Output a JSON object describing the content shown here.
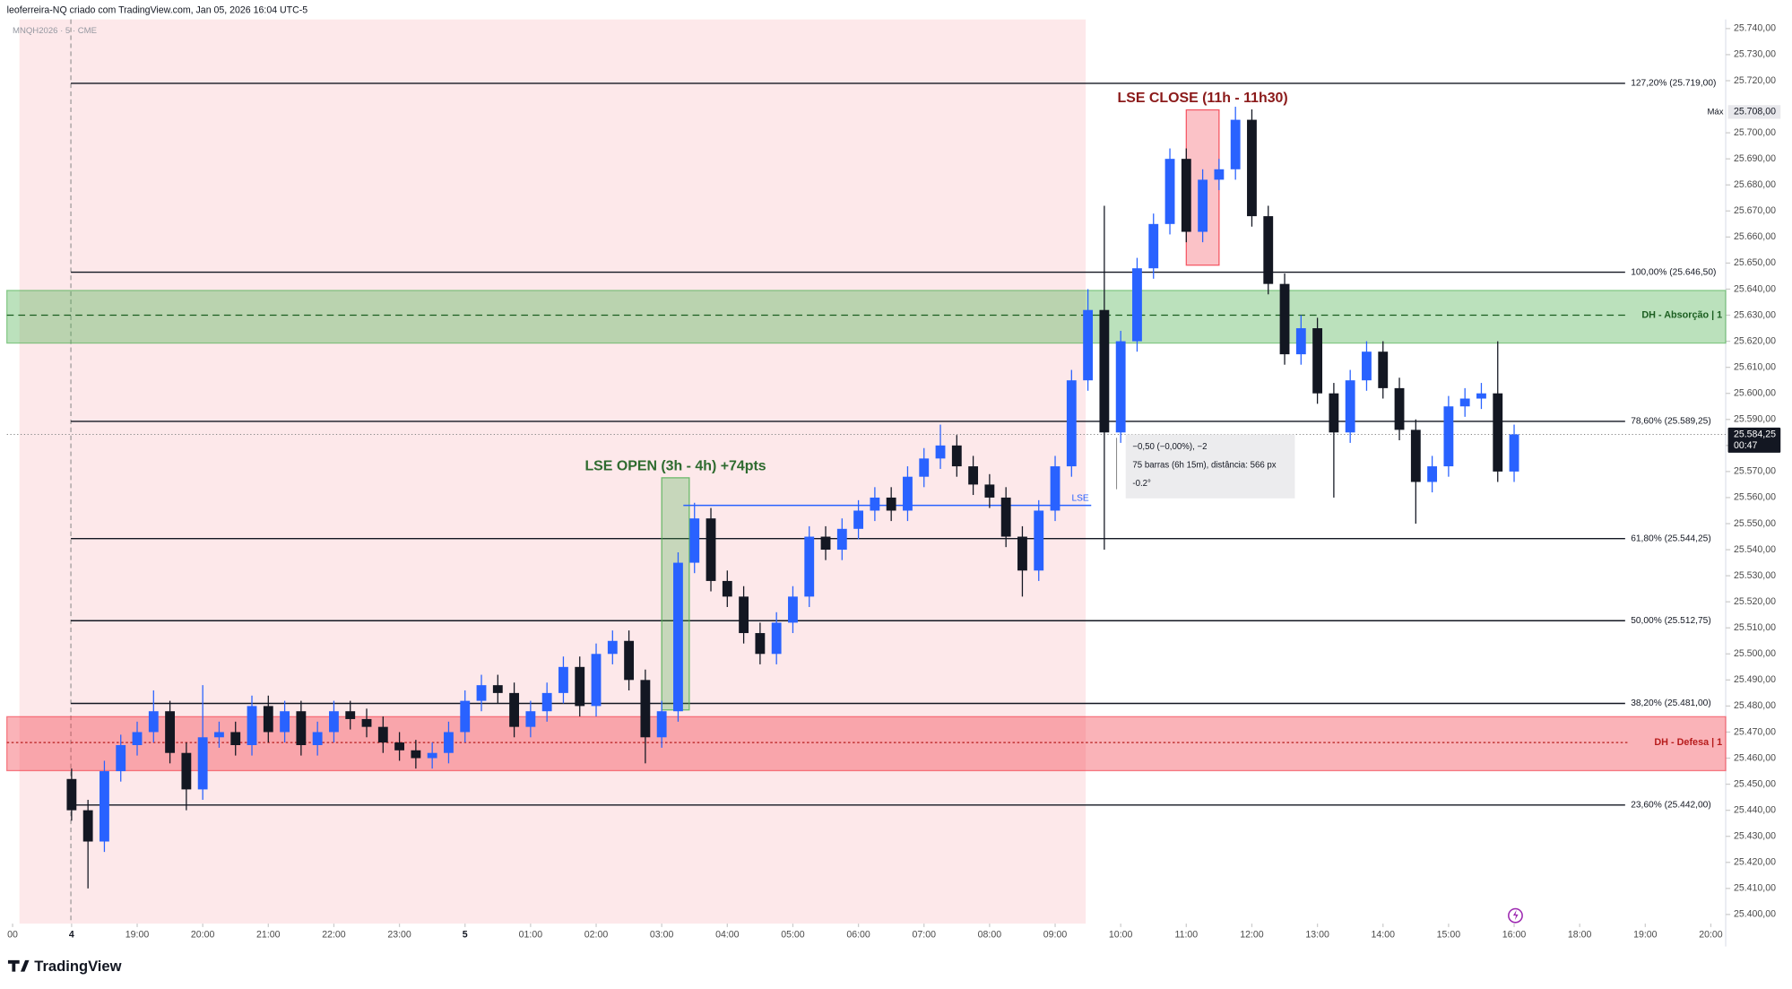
{
  "chart_data": {
    "type": "candlestick",
    "caption": "leoferreira-NQ criado com TradingView.com, Jan 05, 2026 16:04 UTC-5",
    "symbol": "MNQH2026 · 5 · CME",
    "brand": "TradingView",
    "up_color": "#2962ff",
    "down_color": "#131722",
    "ylim": [
      25400,
      25740
    ],
    "yticks": [
      {
        "value": 25400,
        "label": "25.400,00"
      },
      {
        "value": 25410,
        "label": "25.410,00"
      },
      {
        "value": 25420,
        "label": "25.420,00"
      },
      {
        "value": 25430,
        "label": "25.430,00"
      },
      {
        "value": 25440,
        "label": "25.440,00"
      },
      {
        "value": 25450,
        "label": "25.450,00"
      },
      {
        "value": 25460,
        "label": "25.460,00"
      },
      {
        "value": 25470,
        "label": "25.470,00"
      },
      {
        "value": 25480,
        "label": "25.480,00"
      },
      {
        "value": 25490,
        "label": "25.490,00"
      },
      {
        "value": 25500,
        "label": "25.500,00"
      },
      {
        "value": 25510,
        "label": "25.510,00"
      },
      {
        "value": 25520,
        "label": "25.520,00"
      },
      {
        "value": 25530,
        "label": "25.530,00"
      },
      {
        "value": 25540,
        "label": "25.540,00"
      },
      {
        "value": 25550,
        "label": "25.550,00"
      },
      {
        "value": 25560,
        "label": "25.560,00"
      },
      {
        "value": 25570,
        "label": "25.570,00"
      },
      {
        "value": 25580,
        "label": "25.580,00"
      },
      {
        "value": 25590,
        "label": "25.590,00"
      },
      {
        "value": 25600,
        "label": "25.600,00"
      },
      {
        "value": 25610,
        "label": "25.610,00"
      },
      {
        "value": 25620,
        "label": "25.620,00"
      },
      {
        "value": 25630,
        "label": "25.630,00"
      },
      {
        "value": 25640,
        "label": "25.640,00"
      },
      {
        "value": 25650,
        "label": "25.650,00"
      },
      {
        "value": 25660,
        "label": "25.660,00"
      },
      {
        "value": 25670,
        "label": "25.670,00"
      },
      {
        "value": 25680,
        "label": "25.680,00"
      },
      {
        "value": 25690,
        "label": "25.690,00"
      },
      {
        "value": 25700,
        "label": "25.700,00"
      },
      {
        "value": 25720,
        "label": "25.720,00"
      },
      {
        "value": 25730,
        "label": "25.730,00"
      },
      {
        "value": 25740,
        "label": "25.740,00"
      }
    ],
    "xlim": [
      16.9,
      44.2
    ],
    "xticks": [
      {
        "value": 17.1,
        "label": "00"
      },
      {
        "value": 18,
        "label": "4"
      },
      {
        "value": 19,
        "label": "19:00"
      },
      {
        "value": 20,
        "label": "20:00"
      },
      {
        "value": 21,
        "label": "21:00"
      },
      {
        "value": 22,
        "label": "22:00"
      },
      {
        "value": 23,
        "label": "23:00"
      },
      {
        "value": 24,
        "label": "5"
      },
      {
        "value": 25,
        "label": "01:00"
      },
      {
        "value": 26,
        "label": "02:00"
      },
      {
        "value": 27,
        "label": "03:00"
      },
      {
        "value": 28,
        "label": "04:00"
      },
      {
        "value": 29,
        "label": "05:00"
      },
      {
        "value": 30,
        "label": "06:00"
      },
      {
        "value": 31,
        "label": "07:00"
      },
      {
        "value": 32,
        "label": "08:00"
      },
      {
        "value": 33,
        "label": "09:00"
      },
      {
        "value": 34,
        "label": "10:00"
      },
      {
        "value": 35,
        "label": "11:00"
      },
      {
        "value": 36,
        "label": "12:00"
      },
      {
        "value": 37,
        "label": "13:00"
      },
      {
        "value": 38,
        "label": "14:00"
      },
      {
        "value": 39,
        "label": "15:00"
      },
      {
        "value": 40,
        "label": "16:00"
      },
      {
        "value": 41,
        "label": "18:00"
      },
      {
        "value": 42,
        "label": "19:00"
      },
      {
        "value": 43,
        "label": "20:00"
      }
    ],
    "t": [
      18,
      18.25,
      18.5,
      18.75,
      19,
      19.25,
      19.5,
      19.75,
      20,
      20.25,
      20.5,
      20.75,
      21,
      21.25,
      21.5,
      21.75,
      22,
      22.25,
      22.5,
      22.75,
      23,
      23.25,
      23.5,
      23.75,
      24,
      24.25,
      24.5,
      24.75,
      25,
      25.25,
      25.5,
      25.75,
      26,
      26.25,
      26.5,
      26.75,
      27,
      27.25,
      27.5,
      27.75,
      28,
      28.25,
      28.5,
      28.75,
      29,
      29.25,
      29.5,
      29.75,
      30,
      30.25,
      30.5,
      30.75,
      31,
      31.25,
      31.5,
      31.75,
      32,
      32.25,
      32.5,
      32.75,
      33,
      33.25,
      33.5,
      33.75,
      34,
      34.25,
      34.5,
      34.75,
      35,
      35.25,
      35.5,
      35.75,
      36,
      36.25,
      36.5,
      36.75,
      37,
      37.25,
      37.5,
      37.75,
      38,
      38.25,
      38.5,
      38.75,
      39,
      39.25,
      39.5,
      39.75,
      40
    ],
    "open": [
      25452,
      25440,
      25428,
      25455,
      25465,
      25470,
      25478,
      25462,
      25448,
      25468,
      25470,
      25465,
      25480,
      25470,
      25478,
      25465,
      25470,
      25478,
      25475,
      25472,
      25466,
      25463,
      25460,
      25462,
      25470,
      25482,
      25488,
      25485,
      25472,
      25478,
      25485,
      25495,
      25480,
      25500,
      25505,
      25490,
      25468,
      25478,
      25535,
      25552,
      25528,
      25522,
      25508,
      25500,
      25512,
      25522,
      25545,
      25540,
      25548,
      25555,
      25560,
      25555,
      25568,
      25575,
      25580,
      25572,
      25565,
      25560,
      25545,
      25532,
      25555,
      25572,
      25605,
      25632,
      25585,
      25620,
      25648,
      25665,
      25690,
      25662,
      25682,
      25686,
      25705,
      25668,
      25642,
      25615,
      25625,
      25600,
      25585,
      25605,
      25616,
      25602,
      25586,
      25566,
      25572,
      25595,
      25598,
      25600,
      25570
    ],
    "high": [
      25456,
      25444,
      25459,
      25469,
      25474,
      25486,
      25482,
      25466,
      25488,
      25474,
      25474,
      25484,
      25484,
      25482,
      25482,
      25474,
      25482,
      25482,
      25479,
      25476,
      25470,
      25467,
      25466,
      25474,
      25486,
      25492,
      25492,
      25489,
      25482,
      25489,
      25499,
      25499,
      25504,
      25509,
      25509,
      25494,
      25482,
      25539,
      25558,
      25556,
      25532,
      25526,
      25512,
      25516,
      25526,
      25549,
      25549,
      25552,
      25559,
      25564,
      25564,
      25572,
      25579,
      25588,
      25584,
      25576,
      25569,
      25564,
      25549,
      25559,
      25576,
      25609,
      25640,
      25672,
      25624,
      25652,
      25669,
      25694,
      25694,
      25686,
      25690,
      25710,
      25709,
      25672,
      25646,
      25630,
      25629,
      25604,
      25609,
      25620,
      25620,
      25606,
      25590,
      25576,
      25599,
      25602,
      25604,
      25620,
      25588
    ],
    "low": [
      25436,
      25410,
      25424,
      25451,
      25461,
      25466,
      25458,
      25440,
      25444,
      25464,
      25461,
      25461,
      25466,
      25466,
      25461,
      25461,
      25466,
      25471,
      25468,
      25462,
      25459,
      25456,
      25456,
      25458,
      25466,
      25478,
      25481,
      25468,
      25468,
      25474,
      25481,
      25476,
      25476,
      25496,
      25486,
      25458,
      25464,
      25474,
      25531,
      25524,
      25518,
      25504,
      25496,
      25496,
      25508,
      25518,
      25536,
      25536,
      25544,
      25551,
      25551,
      25551,
      25564,
      25571,
      25568,
      25561,
      25556,
      25541,
      25522,
      25528,
      25551,
      25568,
      25601,
      25540,
      25581,
      25616,
      25644,
      25661,
      25658,
      25658,
      25678,
      25682,
      25664,
      25638,
      25611,
      25611,
      25596,
      25560,
      25581,
      25601,
      25598,
      25582,
      25550,
      25562,
      25568,
      25591,
      25594,
      25566,
      25566
    ],
    "close": [
      25440,
      25428,
      25455,
      25465,
      25470,
      25478,
      25462,
      25448,
      25468,
      25470,
      25465,
      25480,
      25470,
      25478,
      25465,
      25470,
      25478,
      25475,
      25472,
      25466,
      25463,
      25460,
      25462,
      25470,
      25482,
      25488,
      25485,
      25472,
      25478,
      25485,
      25495,
      25480,
      25500,
      25505,
      25490,
      25468,
      25478,
      25535,
      25552,
      25528,
      25522,
      25508,
      25500,
      25512,
      25522,
      25545,
      25540,
      25548,
      25555,
      25560,
      25555,
      25568,
      25575,
      25580,
      25572,
      25565,
      25560,
      25545,
      25532,
      25555,
      25572,
      25605,
      25632,
      25585,
      25620,
      25648,
      25665,
      25690,
      25662,
      25682,
      25686,
      25705,
      25668,
      25642,
      25615,
      25625,
      25600,
      25585,
      25605,
      25616,
      25602,
      25586,
      25566,
      25572,
      25595,
      25598,
      25600,
      25570,
      25584.25
    ],
    "fib_levels": [
      {
        "label": "127,20% (25.719,00)",
        "price": 25719
      },
      {
        "label": "100,00% (25.646,50)",
        "price": 25646.5
      },
      {
        "label": "78,60% (25.589,25)",
        "price": 25589.25
      },
      {
        "label": "61,80% (25.544,25)",
        "price": 25544.25
      },
      {
        "label": "50,00% (25.512,75)",
        "price": 25512.75
      },
      {
        "label": "38,20% (25.481,00)",
        "price": 25481
      },
      {
        "label": "23,60% (25.442,00)",
        "price": 25442
      }
    ],
    "zones": [
      {
        "label": "DH - Absorção | 1",
        "top": 25639.5,
        "bottom": 25619.3,
        "mid": 25630,
        "color": "#4caf50",
        "text_color": "#1b5e20"
      },
      {
        "label": "DH - Defesa | 1",
        "top": 25475.9,
        "bottom": 25455.2,
        "mid": 25466,
        "color": "#f23645",
        "text_color": "#b71c1c"
      }
    ],
    "boxes": [
      {
        "label": "LSE OPEN (3h - 4h) +74pts",
        "t0": 27,
        "t1": 27.42,
        "top": 25567.6,
        "bottom": 25478.5,
        "color": "#4caf50",
        "text_color": "#2e6b2f"
      },
      {
        "label": "LSE CLOSE (11h - 11h30)",
        "t0": 35,
        "t1": 35.5,
        "top": 25708.8,
        "bottom": 25649.2,
        "color": "#f23645",
        "text_color": "#8b1a1a"
      }
    ],
    "level_line": {
      "label": "LSE",
      "price": 25557,
      "t0": 27.33,
      "t1": 33.55
    },
    "measure": [
      "−0,50 (−0,00%), −2",
      "75 barras (6h 15m), distância: 566 px",
      "-0.2°"
    ],
    "max": {
      "label": "Máx",
      "price": 25708,
      "price_label": "25.708,00"
    },
    "last": {
      "price": 25584.25,
      "price_label": "25.584,25",
      "countdown": "00:47"
    }
  }
}
